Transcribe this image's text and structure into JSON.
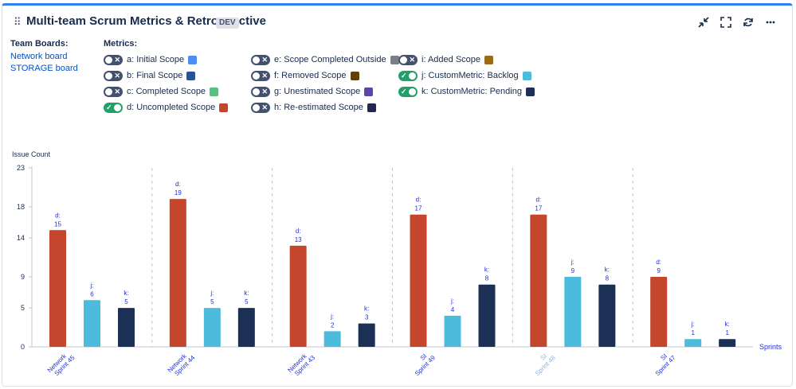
{
  "header": {
    "drag_glyph": "⠿",
    "title": "Multi-team Scrum Metrics & Retrospective",
    "env_badge": "DEV",
    "icons": [
      "collapse-icon",
      "fullscreen-icon",
      "refresh-icon",
      "more-icon"
    ]
  },
  "team_boards": {
    "label": "Team Boards:",
    "items": [
      "Network board",
      "STORAGE board"
    ]
  },
  "metrics": {
    "label": "Metrics:",
    "items": [
      {
        "label": "a: Initial Scope",
        "on": false,
        "color": "#4c8cf5"
      },
      {
        "label": "b: Final Scope",
        "on": false,
        "color": "#2b5197"
      },
      {
        "label": "c: Completed Scope",
        "on": false,
        "color": "#57c27f"
      },
      {
        "label": "d: Uncompleted Scope",
        "on": true,
        "color": "#c4462d"
      },
      {
        "label": "e: Scope Completed Outside",
        "on": false,
        "color": "#7a7f86"
      },
      {
        "label": "f: Removed Scope",
        "on": false,
        "color": "#5c4209"
      },
      {
        "label": "g: Unestimated Scope",
        "on": false,
        "color": "#5b46a8"
      },
      {
        "label": "h: Re-estimated Scope",
        "on": false,
        "color": "#262652"
      },
      {
        "label": "i: Added Scope",
        "on": false,
        "color": "#9a6b16"
      },
      {
        "label": "j: CustomMetric: Backlog",
        "on": true,
        "color": "#4dbcdc"
      },
      {
        "label": "k: CustomMetric: Pending",
        "on": true,
        "color": "#1b3054"
      }
    ]
  },
  "chart_data": {
    "type": "bar",
    "ylabel": "Issue Count",
    "xlabel": "Sprints",
    "ylim": [
      0,
      23
    ],
    "yticks": [
      0,
      5,
      9,
      14,
      18,
      23
    ],
    "grid": "vertical dashed separators between sprints",
    "categories": [
      "Network Sprint 45",
      "Network Sprint 44",
      "Network Sprint 43",
      "SI Sprint 49",
      "SI Sprint 48",
      "SI Sprint 47"
    ],
    "category_colors": [
      "#1f2fd3",
      "#1f2fd3",
      "#1f2fd3",
      "#1f2fd3",
      "#8ab4f0",
      "#1f2fd3"
    ],
    "series": [
      {
        "name": "d",
        "color": "#c4462d",
        "values": [
          15,
          19,
          13,
          17,
          17,
          9
        ]
      },
      {
        "name": "j",
        "color": "#4dbcdc",
        "values": [
          6,
          5,
          2,
          4,
          9,
          1
        ]
      },
      {
        "name": "k",
        "color": "#1b3054",
        "values": [
          5,
          5,
          3,
          8,
          8,
          1
        ]
      }
    ]
  }
}
